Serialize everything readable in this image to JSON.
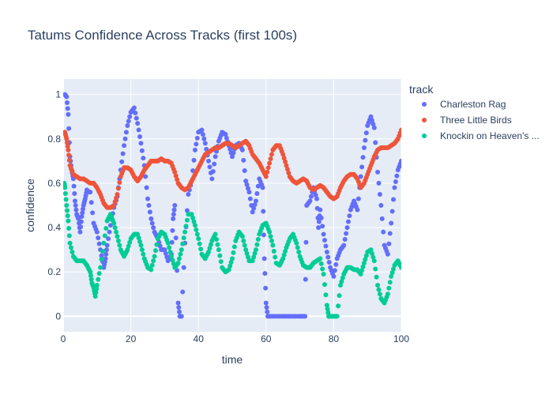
{
  "chart_data": {
    "type": "scatter",
    "title": "Tatums Confidence Across Tracks (first 100s)",
    "xlabel": "time",
    "ylabel": "confidence",
    "xlim": [
      0,
      100
    ],
    "ylim": [
      -0.07,
      1.07
    ],
    "x_ticks": [
      0,
      20,
      40,
      60,
      80,
      100
    ],
    "y_ticks": [
      0,
      0.2,
      0.4,
      0.6,
      0.8,
      1
    ],
    "grid": true,
    "legend_title": "track",
    "legend_position": "top-right",
    "series": [
      {
        "name": "Charleston Rag",
        "color": "#636efa",
        "points": [
          [
            0.5,
            1.0
          ],
          [
            1.0,
            0.99
          ],
          [
            1.5,
            0.91
          ],
          [
            2.0,
            0.72
          ],
          [
            2.5,
            0.66
          ],
          [
            3.0,
            0.62
          ],
          [
            3.5,
            0.52
          ],
          [
            4.0,
            0.46
          ],
          [
            4.5,
            0.44
          ],
          [
            5.0,
            0.38
          ],
          [
            5.5,
            0.45
          ],
          [
            6.0,
            0.5
          ],
          [
            6.5,
            0.53
          ],
          [
            7.0,
            0.57
          ],
          [
            7.5,
            0.56
          ],
          [
            8.0,
            0.56
          ],
          [
            9.0,
            0.42
          ],
          [
            10.0,
            0.38
          ],
          [
            11.0,
            0.3
          ],
          [
            12.0,
            0.22
          ],
          [
            12.5,
            0.26
          ],
          [
            13.0,
            0.32
          ],
          [
            14.0,
            0.41
          ],
          [
            15.0,
            0.49
          ],
          [
            16.0,
            0.54
          ],
          [
            17.0,
            0.66
          ],
          [
            18.0,
            0.77
          ],
          [
            19.0,
            0.86
          ],
          [
            20.0,
            0.92
          ],
          [
            21.0,
            0.94
          ],
          [
            22.0,
            0.87
          ],
          [
            23.0,
            0.78
          ],
          [
            24.0,
            0.68
          ],
          [
            25.0,
            0.53
          ],
          [
            26.0,
            0.44
          ],
          [
            27.0,
            0.38
          ],
          [
            28.0,
            0.35
          ],
          [
            29.0,
            0.3
          ],
          [
            30.0,
            0.3
          ],
          [
            31.0,
            0.25
          ],
          [
            32.0,
            0.28
          ],
          [
            32.5,
            0.44
          ],
          [
            33.0,
            0.5
          ],
          [
            34.0,
            0.06
          ],
          [
            34.5,
            0.0
          ],
          [
            35.0,
            0.0
          ],
          [
            36.0,
            0.33
          ],
          [
            37.0,
            0.55
          ],
          [
            38.0,
            0.61
          ],
          [
            39.0,
            0.75
          ],
          [
            40.0,
            0.83
          ],
          [
            41.0,
            0.84
          ],
          [
            42.0,
            0.78
          ],
          [
            43.0,
            0.7
          ],
          [
            44.0,
            0.62
          ],
          [
            45.0,
            0.72
          ],
          [
            46.0,
            0.79
          ],
          [
            47.0,
            0.83
          ],
          [
            48.0,
            0.82
          ],
          [
            49.0,
            0.77
          ],
          [
            50.0,
            0.72
          ],
          [
            51.0,
            0.77
          ],
          [
            52.0,
            0.78
          ],
          [
            53.0,
            0.75
          ],
          [
            54.0,
            0.61
          ],
          [
            55.0,
            0.56
          ],
          [
            56.0,
            0.47
          ],
          [
            57.0,
            0.52
          ],
          [
            58.0,
            0.62
          ],
          [
            59.0,
            0.58
          ],
          [
            59.5,
            0.26
          ],
          [
            60.0,
            0.06
          ],
          [
            60.5,
            0.0
          ],
          [
            62.0,
            0.0
          ],
          [
            64.0,
            0.0
          ],
          [
            66.0,
            0.0
          ],
          [
            68.0,
            0.0
          ],
          [
            70.0,
            0.0
          ],
          [
            71.5,
            0.0
          ],
          [
            72.0,
            0.5
          ],
          [
            73.0,
            0.52
          ],
          [
            74.0,
            0.58
          ],
          [
            75.0,
            0.53
          ],
          [
            75.5,
            0.4
          ],
          [
            76.0,
            0.48
          ],
          [
            77.0,
            0.37
          ],
          [
            78.0,
            0.29
          ],
          [
            79.0,
            0.22
          ],
          [
            80.0,
            0.18
          ],
          [
            81.0,
            0.26
          ],
          [
            82.0,
            0.3
          ],
          [
            83.0,
            0.32
          ],
          [
            84.0,
            0.4
          ],
          [
            85.0,
            0.48
          ],
          [
            86.0,
            0.52
          ],
          [
            87.0,
            0.48
          ],
          [
            88.0,
            0.63
          ],
          [
            89.0,
            0.76
          ],
          [
            90.0,
            0.86
          ],
          [
            91.0,
            0.9
          ],
          [
            92.0,
            0.85
          ],
          [
            93.0,
            0.65
          ],
          [
            94.0,
            0.5
          ],
          [
            95.0,
            0.32
          ],
          [
            96.0,
            0.28
          ],
          [
            97.0,
            0.42
          ],
          [
            98.0,
            0.58
          ],
          [
            99.0,
            0.66
          ],
          [
            100.0,
            0.7
          ]
        ]
      },
      {
        "name": "Three Little Birds",
        "color": "#ef553b",
        "points": [
          [
            0.5,
            0.83
          ],
          [
            1.0,
            0.8
          ],
          [
            1.5,
            0.75
          ],
          [
            2.0,
            0.68
          ],
          [
            3.0,
            0.64
          ],
          [
            4.0,
            0.63
          ],
          [
            5.0,
            0.62
          ],
          [
            6.0,
            0.62
          ],
          [
            7.0,
            0.61
          ],
          [
            8.0,
            0.6
          ],
          [
            9.0,
            0.6
          ],
          [
            10.0,
            0.58
          ],
          [
            11.0,
            0.55
          ],
          [
            12.0,
            0.51
          ],
          [
            13.0,
            0.49
          ],
          [
            14.0,
            0.49
          ],
          [
            15.0,
            0.5
          ],
          [
            16.0,
            0.55
          ],
          [
            17.0,
            0.63
          ],
          [
            18.0,
            0.67
          ],
          [
            19.0,
            0.67
          ],
          [
            20.0,
            0.66
          ],
          [
            21.0,
            0.63
          ],
          [
            22.0,
            0.61
          ],
          [
            23.0,
            0.63
          ],
          [
            24.0,
            0.66
          ],
          [
            25.0,
            0.68
          ],
          [
            26.0,
            0.7
          ],
          [
            27.0,
            0.7
          ],
          [
            28.0,
            0.7
          ],
          [
            29.0,
            0.71
          ],
          [
            30.0,
            0.7
          ],
          [
            31.0,
            0.7
          ],
          [
            32.0,
            0.69
          ],
          [
            33.0,
            0.65
          ],
          [
            34.0,
            0.6
          ],
          [
            35.0,
            0.58
          ],
          [
            36.0,
            0.57
          ],
          [
            37.0,
            0.58
          ],
          [
            38.0,
            0.61
          ],
          [
            39.0,
            0.64
          ],
          [
            40.0,
            0.67
          ],
          [
            41.0,
            0.7
          ],
          [
            42.0,
            0.73
          ],
          [
            43.0,
            0.74
          ],
          [
            44.0,
            0.75
          ],
          [
            45.0,
            0.76
          ],
          [
            46.0,
            0.76
          ],
          [
            47.0,
            0.77
          ],
          [
            48.0,
            0.78
          ],
          [
            49.0,
            0.78
          ],
          [
            50.0,
            0.77
          ],
          [
            51.0,
            0.76
          ],
          [
            52.0,
            0.77
          ],
          [
            53.0,
            0.78
          ],
          [
            54.0,
            0.79
          ],
          [
            55.0,
            0.77
          ],
          [
            56.0,
            0.73
          ],
          [
            57.0,
            0.71
          ],
          [
            58.0,
            0.69
          ],
          [
            59.0,
            0.66
          ],
          [
            60.0,
            0.63
          ],
          [
            61.0,
            0.69
          ],
          [
            62.0,
            0.75
          ],
          [
            63.0,
            0.77
          ],
          [
            64.0,
            0.77
          ],
          [
            65.0,
            0.73
          ],
          [
            66.0,
            0.68
          ],
          [
            67.0,
            0.63
          ],
          [
            68.0,
            0.61
          ],
          [
            69.0,
            0.6
          ],
          [
            70.0,
            0.61
          ],
          [
            71.0,
            0.62
          ],
          [
            72.0,
            0.61
          ],
          [
            73.0,
            0.58
          ],
          [
            74.0,
            0.57
          ],
          [
            75.0,
            0.58
          ],
          [
            76.0,
            0.59
          ],
          [
            77.0,
            0.58
          ],
          [
            78.0,
            0.56
          ],
          [
            79.0,
            0.54
          ],
          [
            80.0,
            0.53
          ],
          [
            81.0,
            0.54
          ],
          [
            82.0,
            0.58
          ],
          [
            83.0,
            0.61
          ],
          [
            84.0,
            0.63
          ],
          [
            85.0,
            0.64
          ],
          [
            86.0,
            0.64
          ],
          [
            87.0,
            0.62
          ],
          [
            88.0,
            0.58
          ],
          [
            89.0,
            0.6
          ],
          [
            90.0,
            0.64
          ],
          [
            91.0,
            0.68
          ],
          [
            92.0,
            0.72
          ],
          [
            93.0,
            0.75
          ],
          [
            94.0,
            0.76
          ],
          [
            95.0,
            0.76
          ],
          [
            96.0,
            0.76
          ],
          [
            97.0,
            0.77
          ],
          [
            98.0,
            0.78
          ],
          [
            99.0,
            0.8
          ],
          [
            100.0,
            0.84
          ]
        ]
      },
      {
        "name": "Knockin on Heaven's ...",
        "color": "#00cc96",
        "points": [
          [
            0.3,
            0.6
          ],
          [
            0.5,
            0.58
          ],
          [
            1.0,
            0.5
          ],
          [
            1.5,
            0.43
          ],
          [
            2.0,
            0.33
          ],
          [
            3.0,
            0.27
          ],
          [
            4.0,
            0.25
          ],
          [
            5.0,
            0.25
          ],
          [
            6.0,
            0.25
          ],
          [
            7.0,
            0.23
          ],
          [
            8.0,
            0.2
          ],
          [
            8.5,
            0.15
          ],
          [
            9.0,
            0.13
          ],
          [
            9.5,
            0.09
          ],
          [
            10.0,
            0.14
          ],
          [
            11.0,
            0.22
          ],
          [
            12.0,
            0.33
          ],
          [
            13.0,
            0.43
          ],
          [
            14.0,
            0.46
          ],
          [
            15.0,
            0.42
          ],
          [
            16.0,
            0.36
          ],
          [
            17.0,
            0.3
          ],
          [
            18.0,
            0.27
          ],
          [
            19.0,
            0.3
          ],
          [
            20.0,
            0.35
          ],
          [
            21.0,
            0.37
          ],
          [
            22.0,
            0.37
          ],
          [
            23.0,
            0.32
          ],
          [
            24.0,
            0.26
          ],
          [
            25.0,
            0.22
          ],
          [
            26.0,
            0.21
          ],
          [
            27.0,
            0.27
          ],
          [
            28.0,
            0.35
          ],
          [
            29.0,
            0.38
          ],
          [
            30.0,
            0.37
          ],
          [
            31.0,
            0.33
          ],
          [
            32.0,
            0.27
          ],
          [
            33.0,
            0.22
          ],
          [
            34.0,
            0.24
          ],
          [
            35.0,
            0.3
          ],
          [
            36.0,
            0.38
          ],
          [
            37.0,
            0.46
          ],
          [
            38.0,
            0.46
          ],
          [
            39.0,
            0.41
          ],
          [
            40.0,
            0.35
          ],
          [
            41.0,
            0.28
          ],
          [
            42.0,
            0.26
          ],
          [
            43.0,
            0.29
          ],
          [
            44.0,
            0.34
          ],
          [
            45.0,
            0.37
          ],
          [
            46.0,
            0.3
          ],
          [
            47.0,
            0.22
          ],
          [
            48.0,
            0.2
          ],
          [
            49.0,
            0.21
          ],
          [
            50.0,
            0.26
          ],
          [
            51.0,
            0.34
          ],
          [
            52.0,
            0.38
          ],
          [
            53.0,
            0.36
          ],
          [
            54.0,
            0.3
          ],
          [
            55.0,
            0.25
          ],
          [
            56.0,
            0.25
          ],
          [
            57.0,
            0.3
          ],
          [
            58.0,
            0.37
          ],
          [
            59.0,
            0.41
          ],
          [
            60.0,
            0.42
          ],
          [
            61.0,
            0.38
          ],
          [
            62.0,
            0.32
          ],
          [
            63.0,
            0.24
          ],
          [
            64.0,
            0.23
          ],
          [
            65.0,
            0.26
          ],
          [
            66.0,
            0.31
          ],
          [
            67.0,
            0.35
          ],
          [
            68.0,
            0.37
          ],
          [
            69.0,
            0.33
          ],
          [
            70.0,
            0.27
          ],
          [
            71.0,
            0.23
          ],
          [
            72.0,
            0.22
          ],
          [
            73.0,
            0.22
          ],
          [
            74.0,
            0.24
          ],
          [
            75.0,
            0.25
          ],
          [
            76.0,
            0.26
          ],
          [
            77.0,
            0.19
          ],
          [
            78.0,
            0.05
          ],
          [
            78.5,
            0.0
          ],
          [
            79.0,
            0.0
          ],
          [
            80.0,
            0.0
          ],
          [
            81.0,
            0.0
          ],
          [
            82.0,
            0.14
          ],
          [
            83.0,
            0.19
          ],
          [
            84.0,
            0.22
          ],
          [
            85.0,
            0.22
          ],
          [
            86.0,
            0.21
          ],
          [
            87.0,
            0.21
          ],
          [
            88.0,
            0.19
          ],
          [
            89.0,
            0.24
          ],
          [
            90.0,
            0.29
          ],
          [
            91.0,
            0.3
          ],
          [
            92.0,
            0.25
          ],
          [
            93.0,
            0.14
          ],
          [
            94.0,
            0.08
          ],
          [
            95.0,
            0.06
          ],
          [
            96.0,
            0.1
          ],
          [
            97.0,
            0.18
          ],
          [
            98.0,
            0.23
          ],
          [
            99.0,
            0.25
          ],
          [
            100.0,
            0.22
          ]
        ]
      }
    ]
  }
}
